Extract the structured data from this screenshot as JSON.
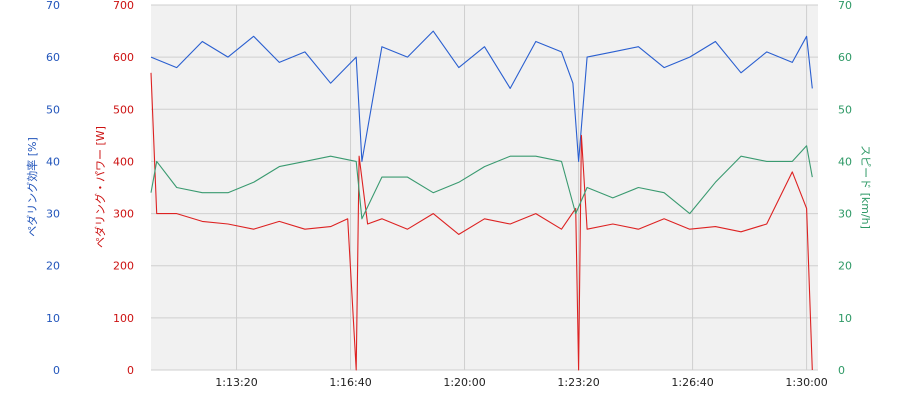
{
  "chart_data": {
    "type": "line",
    "x_unit": "elapsed time (h:mm:ss)",
    "x_range": [
      "1:10:50",
      "1:30:20"
    ],
    "x_ticks": [
      "1:13:20",
      "1:16:40",
      "1:20:00",
      "1:23:20",
      "1:26:40",
      "1:30:00"
    ],
    "grid": true,
    "axes": {
      "left_outer": {
        "label": "ペダリング効率 [%]",
        "range": [
          0,
          70
        ],
        "ticks": [
          "0",
          "10",
          "20",
          "30",
          "40",
          "50",
          "60",
          "70"
        ],
        "color": "#2255bb"
      },
      "left_inner": {
        "label": "ペダリング・パワー [W]",
        "range": [
          0,
          700
        ],
        "ticks": [
          "0",
          "100",
          "200",
          "300",
          "400",
          "500",
          "600",
          "700"
        ],
        "color": "#cc1111"
      },
      "right": {
        "label": "スピード [km/h]",
        "range": [
          0,
          70
        ],
        "ticks": [
          "0",
          "10",
          "20",
          "30",
          "40",
          "50",
          "60",
          "70"
        ],
        "color": "#2e9966"
      }
    },
    "series": [
      {
        "axis": "left_outer",
        "color": "#2a5fd0",
        "x": [
          "1:10:50",
          "1:11:35",
          "1:12:20",
          "1:13:05",
          "1:13:50",
          "1:14:35",
          "1:15:20",
          "1:16:05",
          "1:16:50",
          "1:17:00",
          "1:17:35",
          "1:18:20",
          "1:19:05",
          "1:19:50",
          "1:20:35",
          "1:21:20",
          "1:22:05",
          "1:22:50",
          "1:23:10",
          "1:23:20",
          "1:23:35",
          "1:24:20",
          "1:25:05",
          "1:25:50",
          "1:26:35",
          "1:27:20",
          "1:28:05",
          "1:28:50",
          "1:29:35",
          "1:30:00",
          "1:30:10"
        ],
        "y": [
          60,
          58,
          63,
          60,
          64,
          59,
          61,
          55,
          60,
          40,
          62,
          60,
          65,
          58,
          62,
          54,
          63,
          61,
          55,
          40,
          60,
          61,
          62,
          58,
          60,
          63,
          57,
          61,
          59,
          64,
          54
        ]
      },
      {
        "axis": "left_inner",
        "color": "#dd2222",
        "x": [
          "1:10:50",
          "1:11:00",
          "1:11:35",
          "1:12:20",
          "1:13:05",
          "1:13:50",
          "1:14:35",
          "1:15:20",
          "1:16:05",
          "1:16:35",
          "1:16:50",
          "1:16:55",
          "1:17:10",
          "1:17:35",
          "1:18:20",
          "1:19:05",
          "1:19:50",
          "1:20:35",
          "1:21:20",
          "1:22:05",
          "1:22:50",
          "1:23:15",
          "1:23:20",
          "1:23:25",
          "1:23:35",
          "1:24:20",
          "1:25:05",
          "1:25:50",
          "1:26:35",
          "1:27:20",
          "1:28:05",
          "1:28:50",
          "1:29:35",
          "1:30:00",
          "1:30:10"
        ],
        "y": [
          570,
          300,
          300,
          285,
          280,
          270,
          285,
          270,
          275,
          290,
          0,
          410,
          280,
          290,
          270,
          300,
          260,
          290,
          280,
          300,
          270,
          310,
          0,
          450,
          270,
          280,
          270,
          290,
          270,
          275,
          265,
          280,
          380,
          310,
          0
        ]
      },
      {
        "axis": "right",
        "color": "#3a9a70",
        "x": [
          "1:10:50",
          "1:11:00",
          "1:11:35",
          "1:12:20",
          "1:13:05",
          "1:13:50",
          "1:14:35",
          "1:15:20",
          "1:16:05",
          "1:16:50",
          "1:17:00",
          "1:17:35",
          "1:18:20",
          "1:19:05",
          "1:19:50",
          "1:20:35",
          "1:21:20",
          "1:22:05",
          "1:22:50",
          "1:23:15",
          "1:23:35",
          "1:24:20",
          "1:25:05",
          "1:25:50",
          "1:26:35",
          "1:27:20",
          "1:28:05",
          "1:28:50",
          "1:29:35",
          "1:30:00",
          "1:30:10"
        ],
        "y": [
          34,
          40,
          35,
          34,
          34,
          36,
          39,
          40,
          41,
          40,
          29,
          37,
          37,
          34,
          36,
          39,
          41,
          41,
          40,
          30,
          35,
          33,
          35,
          34,
          30,
          36,
          41,
          40,
          40,
          43,
          37
        ]
      }
    ]
  }
}
